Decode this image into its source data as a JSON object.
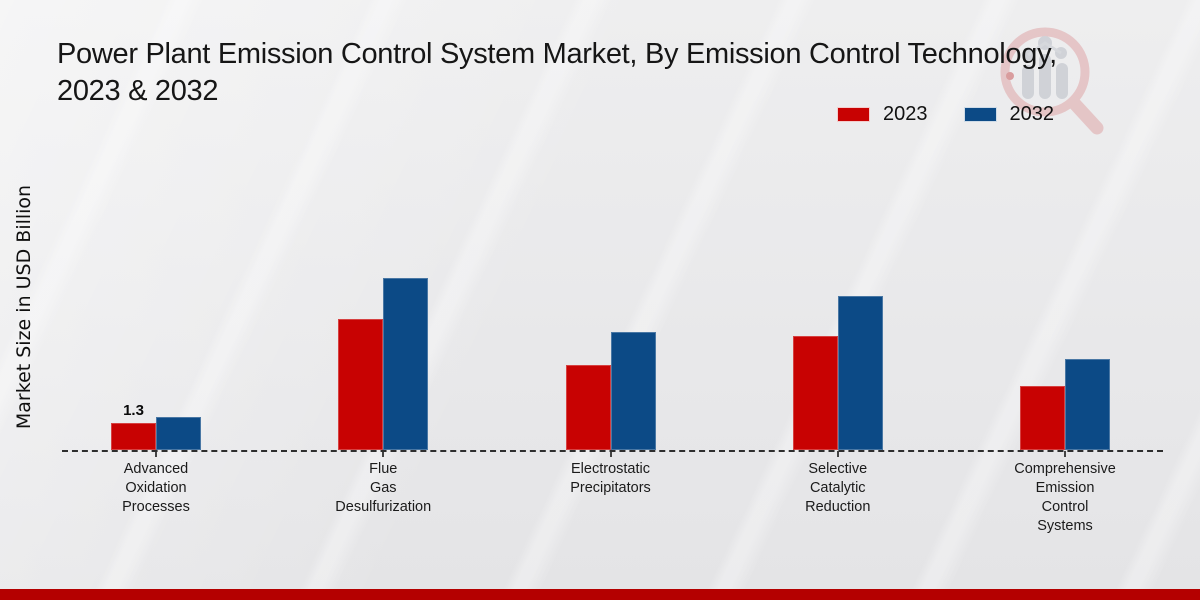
{
  "title_lines": [
    "Power Plant Emission Control System Market, By Emission Control Technology,",
    "2023 & 2032"
  ],
  "ylabel": "Market Size in USD Billion",
  "legend": [
    {
      "label": "2023",
      "color": "#c80202"
    },
    {
      "label": "2032",
      "color": "#0c4a86"
    }
  ],
  "watermark_icon": "magnifier-bar-chart-logo",
  "footer_color": "#b40000",
  "chart_data": {
    "type": "bar",
    "title": "Power Plant Emission Control System Market, By Emission Control Technology, 2023 & 2032",
    "xlabel": "",
    "ylabel": "Market Size in USD Billion",
    "categories": [
      "Advanced Oxidation Processes",
      "Flue Gas Desulfurization",
      "Electrostatic Precipitators",
      "Selective Catalytic Reduction",
      "Comprehensive Emission Control Systems"
    ],
    "categories_lines": [
      [
        "Advanced",
        "Oxidation",
        "Processes"
      ],
      [
        "Flue",
        "Gas",
        "Desulfurization"
      ],
      [
        "Electrostatic",
        "Precipitators"
      ],
      [
        "Selective",
        "Catalytic",
        "Reduction"
      ],
      [
        "Comprehensive",
        "Emission",
        "Control",
        "Systems"
      ]
    ],
    "series": [
      {
        "name": "2023",
        "color": "#c80202",
        "values": [
          1.3,
          6.3,
          4.1,
          5.5,
          3.1
        ],
        "labels": [
          "1.3",
          "",
          "",
          "",
          ""
        ]
      },
      {
        "name": "2032",
        "color": "#0c4a86",
        "values": [
          1.6,
          8.3,
          5.7,
          7.4,
          4.4
        ],
        "labels": [
          "",
          "",
          "",
          "",
          ""
        ]
      }
    ],
    "ylim": [
      0,
      9.6
    ],
    "grid": false,
    "legend_position": "top-right",
    "baseline_style": "dashed",
    "value_unit": "USD Billion"
  }
}
